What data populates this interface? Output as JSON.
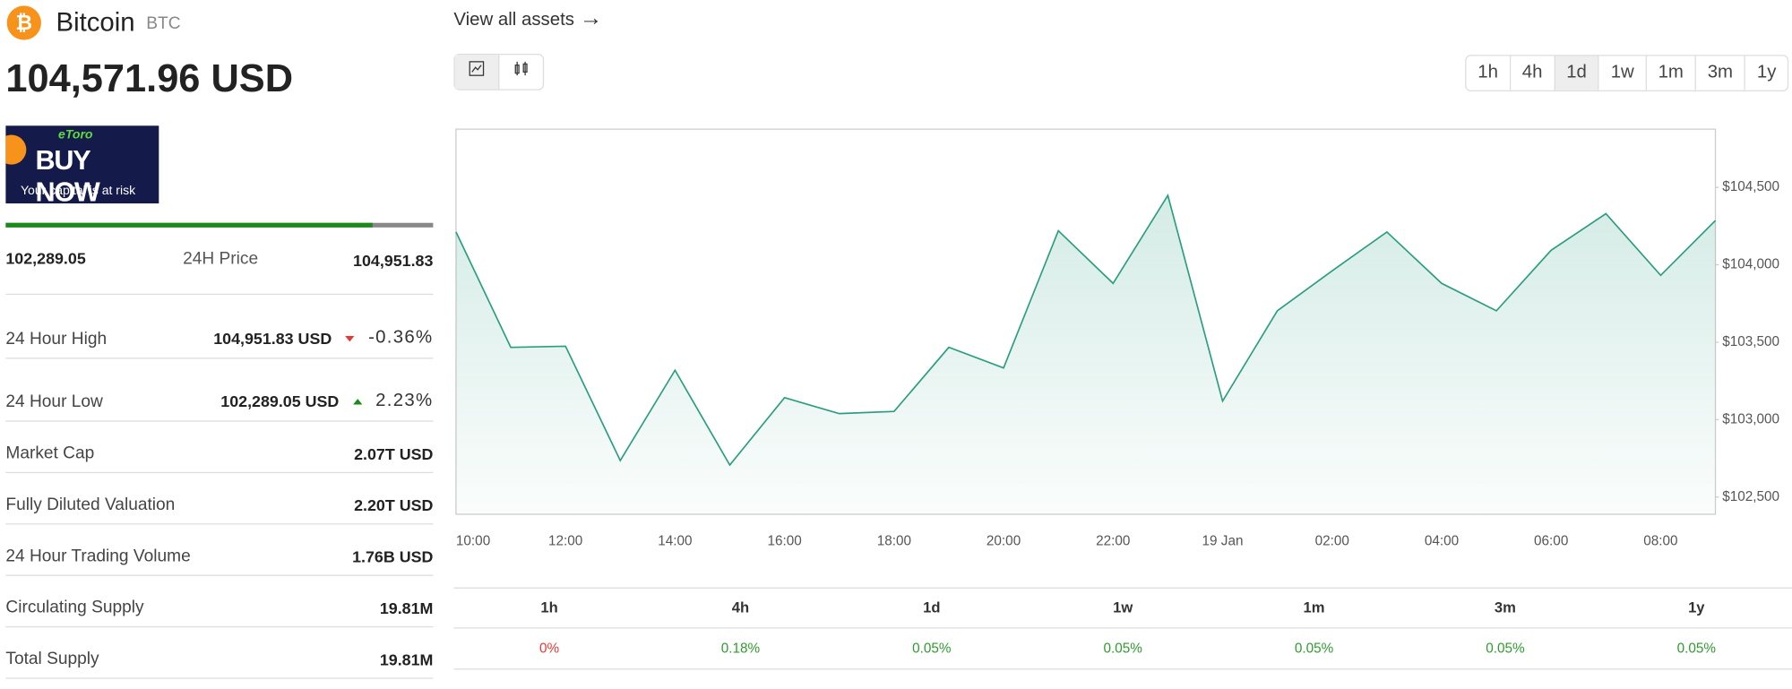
{
  "header": {
    "name": "Bitcoin",
    "symbol": "BTC",
    "price": "104,571.96 USD"
  },
  "ad": {
    "brand": "eToro",
    "headline": "BUY NOW",
    "disclaimer": "Your capital is at risk"
  },
  "nav": {
    "view_all": "View all assets",
    "timeframes": [
      "1h",
      "4h",
      "1d",
      "1w",
      "1m",
      "3m",
      "1y"
    ],
    "active": "1d"
  },
  "range": {
    "low": "102,289.05",
    "label": "24H Price",
    "high": "104,951.83",
    "low_value": 102289.05,
    "high_value": 104951.83,
    "current_value": 104571.96
  },
  "stats": [
    {
      "label": "24 Hour High",
      "value": "104,951.83 USD",
      "change": "-0.36%",
      "trend": "down"
    },
    {
      "label": "24 Hour Low",
      "value": "102,289.05 USD",
      "change": "2.23%",
      "trend": "up"
    },
    {
      "label": "Market Cap",
      "value": "2.07T USD"
    },
    {
      "label": "Fully Diluted Valuation",
      "value": "2.20T USD"
    },
    {
      "label": "24 Hour Trading Volume",
      "value": "1.76B USD"
    },
    {
      "label": "Circulating Supply",
      "value": "19.81M"
    },
    {
      "label": "Total Supply",
      "value": "19.81M"
    }
  ],
  "performance": [
    {
      "period": "1h",
      "change": "0%",
      "color": "#e53935"
    },
    {
      "period": "4h",
      "change": "0.18%",
      "color": "#2e9b2e"
    },
    {
      "period": "1d",
      "change": "0.05%",
      "color": "#2e9b2e"
    },
    {
      "period": "1w",
      "change": "0.05%",
      "color": "#2e9b2e"
    },
    {
      "period": "1m",
      "change": "0.05%",
      "color": "#2e9b2e"
    },
    {
      "period": "3m",
      "change": "0.05%",
      "color": "#2e9b2e"
    },
    {
      "period": "1y",
      "change": "0.05%",
      "color": "#2e9b2e"
    }
  ],
  "chart_data": {
    "type": "line",
    "categories": [
      "10:00",
      null,
      "12:00",
      null,
      "14:00",
      null,
      "16:00",
      null,
      "18:00",
      null,
      "20:00",
      null,
      "22:00",
      null,
      "19 Jan",
      null,
      "02:00",
      null,
      "04:00",
      null,
      "06:00",
      null,
      "08:00",
      null
    ],
    "values": [
      104212,
      103467,
      103474,
      102736,
      103319,
      102707,
      103142,
      103039,
      103053,
      103467,
      103334,
      104220,
      103880,
      104448,
      103120,
      103703,
      103961,
      104212,
      103880,
      103703,
      104094,
      104330,
      103932,
      104286
    ],
    "color": "#2a9d7f",
    "ylim": [
      102389,
      104876
    ],
    "yticks": [
      {
        "value": 102500,
        "label": "$102,500"
      },
      {
        "value": 103000,
        "label": "$103,000"
      },
      {
        "value": 103500,
        "label": "$103,500"
      },
      {
        "value": 104000,
        "label": "$104,000"
      },
      {
        "value": 104500,
        "label": "$104,500"
      }
    ]
  }
}
